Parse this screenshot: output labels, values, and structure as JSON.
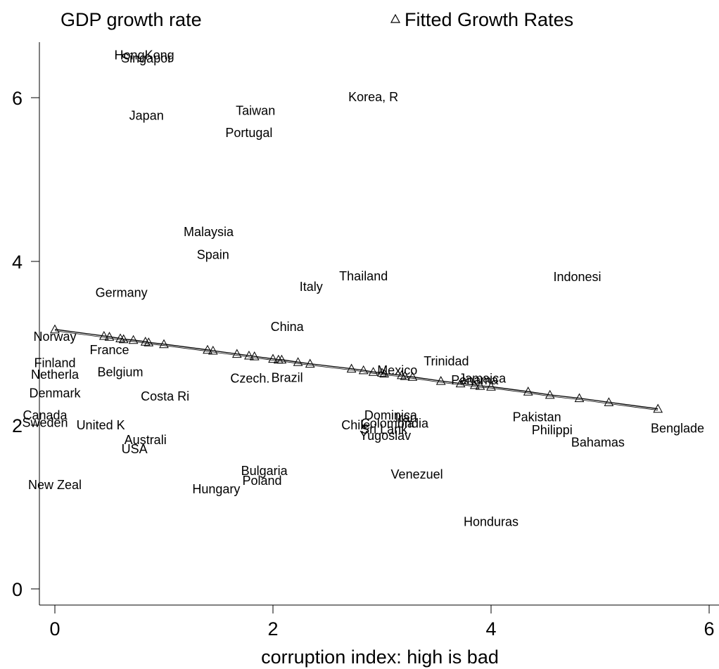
{
  "chart_data": {
    "type": "scatter",
    "xlabel": "corruption index: high is bad",
    "ylabel": "",
    "xlim": [
      -0.2,
      6.2
    ],
    "ylim": [
      -0.15,
      6.7
    ],
    "x_ticks": [
      0,
      2,
      4,
      6
    ],
    "y_ticks": [
      0,
      2,
      4,
      6
    ],
    "grid": false,
    "legend": {
      "placement": "top",
      "entries": [
        {
          "label": "GDP growth rate",
          "marker": "none"
        },
        {
          "label": "Fitted Growth Rates",
          "marker": "triangle"
        }
      ]
    },
    "series": [
      {
        "name": "GDP growth rate",
        "marker": "country-name",
        "points": [
          {
            "label": "HongKong",
            "x": 0.82,
            "y": 6.52
          },
          {
            "label": "Singapor",
            "x": 0.84,
            "y": 6.48
          },
          {
            "label": "Japan",
            "x": 0.84,
            "y": 5.78
          },
          {
            "label": "Taiwan",
            "x": 1.84,
            "y": 5.84
          },
          {
            "label": "Portugal",
            "x": 1.78,
            "y": 5.57
          },
          {
            "label": "Korea, R",
            "x": 2.92,
            "y": 6.01
          },
          {
            "label": "Malaysia",
            "x": 1.41,
            "y": 4.36
          },
          {
            "label": "Spain",
            "x": 1.45,
            "y": 4.08
          },
          {
            "label": "Thailand",
            "x": 2.83,
            "y": 3.82
          },
          {
            "label": "Italy",
            "x": 2.35,
            "y": 3.69
          },
          {
            "label": "Indonesi",
            "x": 4.79,
            "y": 3.81
          },
          {
            "label": "Germany",
            "x": 0.61,
            "y": 3.62
          },
          {
            "label": "China",
            "x": 2.13,
            "y": 3.2
          },
          {
            "label": "Norway",
            "x": 0.0,
            "y": 3.08
          },
          {
            "label": "France",
            "x": 0.5,
            "y": 2.92
          },
          {
            "label": "Finland",
            "x": 0.0,
            "y": 2.76
          },
          {
            "label": "Netherla",
            "x": 0.0,
            "y": 2.62
          },
          {
            "label": "Belgium",
            "x": 0.6,
            "y": 2.65
          },
          {
            "label": "Czech.",
            "x": 1.79,
            "y": 2.57
          },
          {
            "label": "Brazil",
            "x": 2.13,
            "y": 2.58
          },
          {
            "label": "Trinidad",
            "x": 3.59,
            "y": 2.78
          },
          {
            "label": "Mexico",
            "x": 3.14,
            "y": 2.67
          },
          {
            "label": "Jamaica",
            "x": 3.92,
            "y": 2.57
          },
          {
            "label": "Panama",
            "x": 3.85,
            "y": 2.55
          },
          {
            "label": "Denmark",
            "x": 0.0,
            "y": 2.39
          },
          {
            "label": "Costa Ri",
            "x": 1.01,
            "y": 2.35
          },
          {
            "label": "Canada",
            "x": -0.09,
            "y": 2.12
          },
          {
            "label": "Sweden",
            "x": -0.09,
            "y": 2.03
          },
          {
            "label": "United K",
            "x": 0.42,
            "y": 2.0
          },
          {
            "label": "Dominica",
            "x": 3.08,
            "y": 2.12
          },
          {
            "label": "Colombia",
            "x": 3.05,
            "y": 2.02
          },
          {
            "label": "Chile",
            "x": 2.76,
            "y": 2.0
          },
          {
            "label": "India",
            "x": 3.3,
            "y": 2.02
          },
          {
            "label": "Sri Lank",
            "x": 3.02,
            "y": 1.95
          },
          {
            "label": "Iran",
            "x": 3.22,
            "y": 2.09
          },
          {
            "label": "Yugoslav",
            "x": 3.03,
            "y": 1.87
          },
          {
            "label": "Pakistan",
            "x": 4.42,
            "y": 2.1
          },
          {
            "label": "Philippi",
            "x": 4.56,
            "y": 1.94
          },
          {
            "label": "Benglade",
            "x": 5.71,
            "y": 1.96
          },
          {
            "label": "Bahamas",
            "x": 4.98,
            "y": 1.79
          },
          {
            "label": "Australi",
            "x": 0.83,
            "y": 1.82
          },
          {
            "label": "USA",
            "x": 0.73,
            "y": 1.71
          },
          {
            "label": "Bulgaria",
            "x": 1.92,
            "y": 1.44
          },
          {
            "label": "Poland",
            "x": 1.9,
            "y": 1.32
          },
          {
            "label": "Hungary",
            "x": 1.48,
            "y": 1.22
          },
          {
            "label": "Venezuel",
            "x": 3.32,
            "y": 1.4
          },
          {
            "label": "New Zeal",
            "x": 0.0,
            "y": 1.27
          },
          {
            "label": "Honduras",
            "x": 4.0,
            "y": 0.82
          }
        ]
      },
      {
        "name": "Fitted Growth Rates",
        "marker": "triangle",
        "line": true,
        "points": [
          {
            "x": 0.0,
            "y": 3.17
          },
          {
            "x": 0.45,
            "y": 3.09
          },
          {
            "x": 0.5,
            "y": 3.08
          },
          {
            "x": 0.6,
            "y": 3.06
          },
          {
            "x": 0.63,
            "y": 3.05
          },
          {
            "x": 0.72,
            "y": 3.04
          },
          {
            "x": 0.83,
            "y": 3.02
          },
          {
            "x": 0.86,
            "y": 3.01
          },
          {
            "x": 1.0,
            "y": 2.99
          },
          {
            "x": 1.4,
            "y": 2.92
          },
          {
            "x": 1.45,
            "y": 2.91
          },
          {
            "x": 1.67,
            "y": 2.87
          },
          {
            "x": 1.78,
            "y": 2.85
          },
          {
            "x": 1.83,
            "y": 2.84
          },
          {
            "x": 2.0,
            "y": 2.81
          },
          {
            "x": 2.05,
            "y": 2.8
          },
          {
            "x": 2.08,
            "y": 2.8
          },
          {
            "x": 2.23,
            "y": 2.77
          },
          {
            "x": 2.34,
            "y": 2.75
          },
          {
            "x": 2.72,
            "y": 2.69
          },
          {
            "x": 2.83,
            "y": 2.67
          },
          {
            "x": 2.92,
            "y": 2.65
          },
          {
            "x": 3.0,
            "y": 2.64
          },
          {
            "x": 3.02,
            "y": 2.63
          },
          {
            "x": 3.18,
            "y": 2.61
          },
          {
            "x": 3.21,
            "y": 2.6
          },
          {
            "x": 3.28,
            "y": 2.59
          },
          {
            "x": 3.54,
            "y": 2.54
          },
          {
            "x": 3.72,
            "y": 2.51
          },
          {
            "x": 3.85,
            "y": 2.49
          },
          {
            "x": 3.9,
            "y": 2.48
          },
          {
            "x": 4.0,
            "y": 2.47
          },
          {
            "x": 4.34,
            "y": 2.41
          },
          {
            "x": 4.54,
            "y": 2.37
          },
          {
            "x": 4.81,
            "y": 2.33
          },
          {
            "x": 5.08,
            "y": 2.28
          },
          {
            "x": 5.53,
            "y": 2.2
          }
        ]
      }
    ]
  }
}
